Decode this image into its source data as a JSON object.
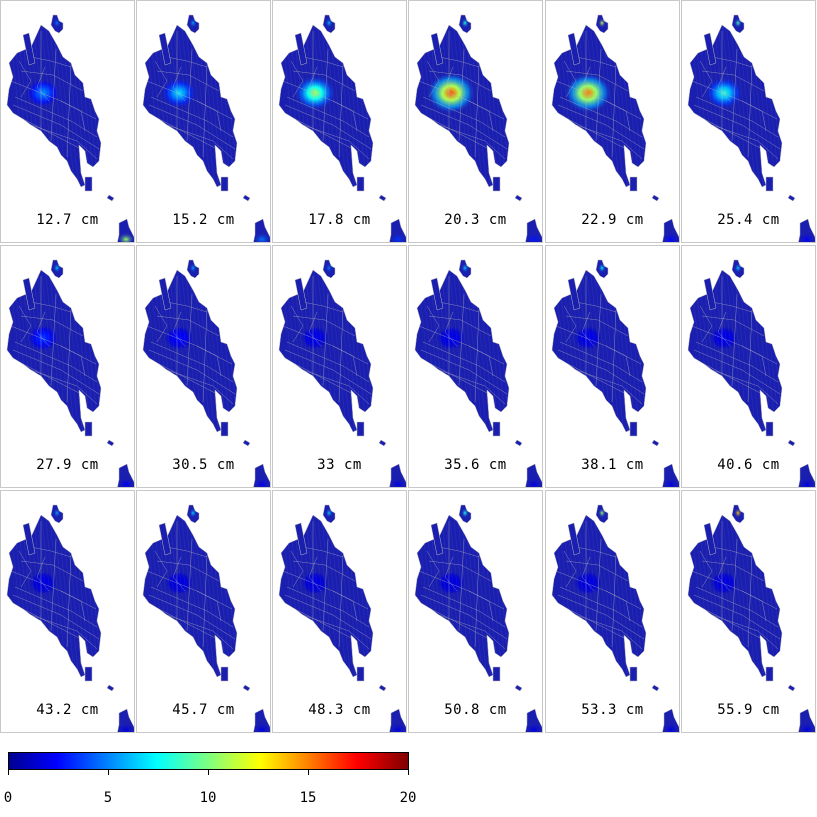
{
  "panels": [
    {
      "label": "12.7 cm",
      "hotspot": 0.22,
      "hotspot_small": 0.2,
      "hotspot_inset": 0.55
    },
    {
      "label": "15.2 cm",
      "hotspot": 0.32,
      "hotspot_small": 0.25,
      "hotspot_inset": 0.2
    },
    {
      "label": "17.8 cm",
      "hotspot": 0.55,
      "hotspot_small": 0.28,
      "hotspot_inset": 0.12
    },
    {
      "label": "20.3 cm",
      "hotspot": 0.85,
      "hotspot_small": 0.4,
      "hotspot_inset": 0.08
    },
    {
      "label": "22.9 cm",
      "hotspot": 0.8,
      "hotspot_small": 0.6,
      "hotspot_inset": 0.06
    },
    {
      "label": "25.4 cm",
      "hotspot": 0.4,
      "hotspot_small": 0.45,
      "hotspot_inset": 0.05
    },
    {
      "label": "27.9 cm",
      "hotspot": 0.12,
      "hotspot_small": 0.3,
      "hotspot_inset": 0.04
    },
    {
      "label": "30.5 cm",
      "hotspot": 0.06,
      "hotspot_small": 0.25,
      "hotspot_inset": 0.03
    },
    {
      "label": "33 cm",
      "hotspot": 0.03,
      "hotspot_small": 0.2,
      "hotspot_inset": 0.02
    },
    {
      "label": "35.6 cm",
      "hotspot": 0.03,
      "hotspot_small": 0.3,
      "hotspot_inset": 0.02
    },
    {
      "label": "38.1 cm",
      "hotspot": 0.03,
      "hotspot_small": 0.35,
      "hotspot_inset": 0.02
    },
    {
      "label": "40.6 cm",
      "hotspot": 0.03,
      "hotspot_small": 0.3,
      "hotspot_inset": 0.02
    },
    {
      "label": "43.2 cm",
      "hotspot": 0.02,
      "hotspot_small": 0.25,
      "hotspot_inset": 0.02
    },
    {
      "label": "45.7 cm",
      "hotspot": 0.02,
      "hotspot_small": 0.3,
      "hotspot_inset": 0.02
    },
    {
      "label": "48.3 cm",
      "hotspot": 0.02,
      "hotspot_small": 0.3,
      "hotspot_inset": 0.02
    },
    {
      "label": "50.8 cm",
      "hotspot": 0.02,
      "hotspot_small": 0.4,
      "hotspot_inset": 0.02
    },
    {
      "label": "53.3 cm",
      "hotspot": 0.02,
      "hotspot_small": 0.55,
      "hotspot_inset": 0.02
    },
    {
      "label": "55.9 cm",
      "hotspot": 0.02,
      "hotspot_small": 0.75,
      "hotspot_inset": 0.02
    }
  ],
  "colorbar": {
    "min": 0,
    "max": 20,
    "ticks": [
      "0",
      "5",
      "10",
      "15",
      "20"
    ],
    "colormap": "jet"
  },
  "colors": {
    "base_fill": "#1a1fb0",
    "boundary": "#b8b8b8",
    "panel_border": "#c8c8c8"
  }
}
